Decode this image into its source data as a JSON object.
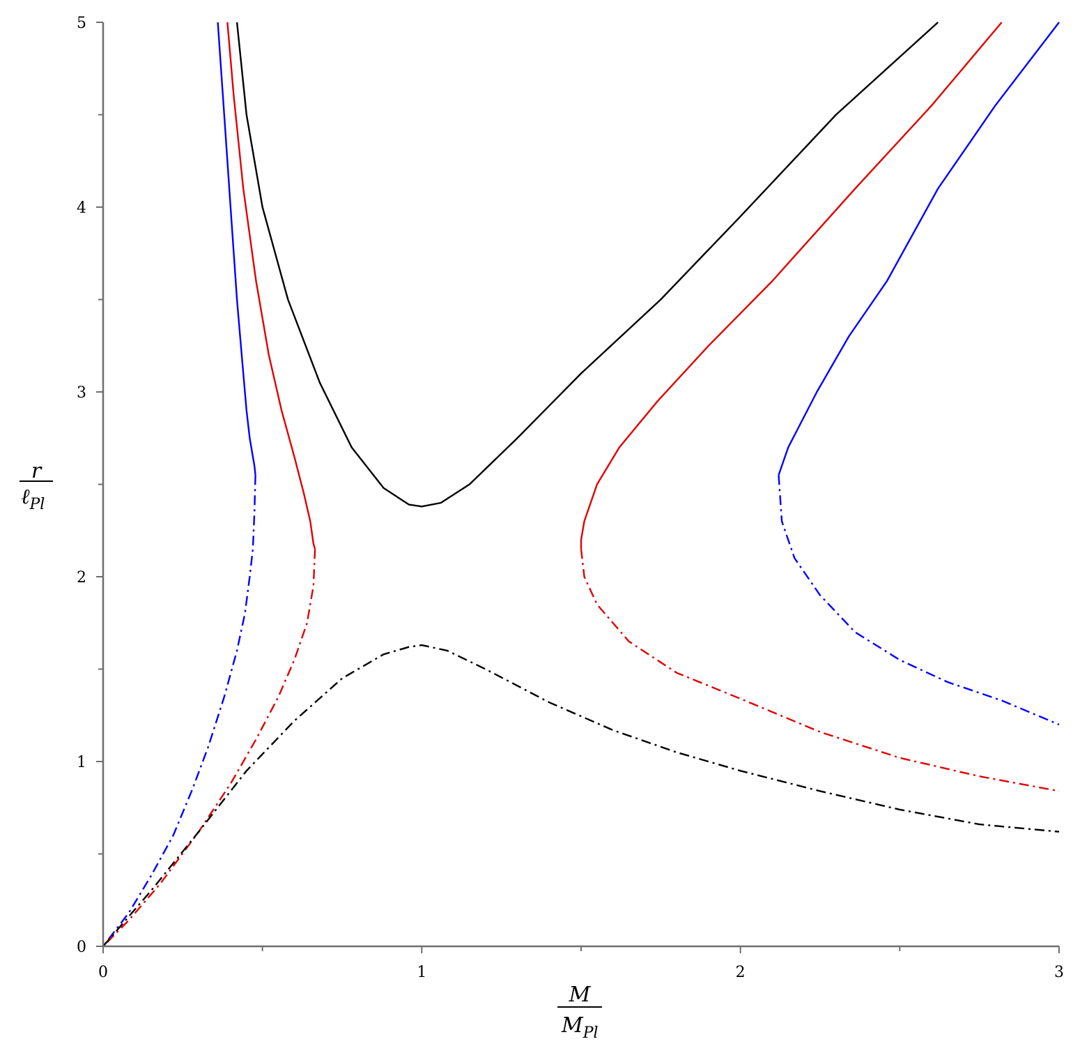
{
  "chart_data": {
    "type": "line",
    "title": "",
    "xlabel": {
      "numerator": "M",
      "denominator_base": "M",
      "denominator_sub": "Pl"
    },
    "ylabel": {
      "numerator": "r",
      "denominator_base": "ℓ",
      "denominator_sub": "Pl"
    },
    "xlim": [
      0,
      3
    ],
    "ylim": [
      0,
      5
    ],
    "xticks": [
      0,
      1,
      2,
      3
    ],
    "yticks": [
      0,
      1,
      2,
      3,
      4,
      5
    ],
    "x_minor_step": 0.5,
    "y_minor_step": 0.5,
    "grid": false,
    "legend": "none",
    "colors": {
      "blue": "#0000ff",
      "red": "#e00000",
      "black": "#000000",
      "axis": "#6e6e6e"
    },
    "series": [
      {
        "color": "blue",
        "style": "solid",
        "points": [
          [
            0.36,
            5.0
          ],
          [
            0.38,
            4.5
          ],
          [
            0.4,
            4.0
          ],
          [
            0.42,
            3.5
          ],
          [
            0.435,
            3.2
          ],
          [
            0.45,
            2.9
          ],
          [
            0.46,
            2.75
          ],
          [
            0.47,
            2.65
          ],
          [
            0.475,
            2.6
          ],
          [
            0.478,
            2.55
          ]
        ]
      },
      {
        "color": "blue",
        "style": "dashdot",
        "points": [
          [
            0.478,
            2.55
          ],
          [
            0.475,
            2.35
          ],
          [
            0.47,
            2.15
          ],
          [
            0.46,
            2.0
          ],
          [
            0.445,
            1.8
          ],
          [
            0.42,
            1.6
          ],
          [
            0.38,
            1.35
          ],
          [
            0.33,
            1.08
          ],
          [
            0.28,
            0.85
          ],
          [
            0.22,
            0.6
          ],
          [
            0.15,
            0.38
          ],
          [
            0.08,
            0.18
          ],
          [
            0.0,
            0.0
          ]
        ]
      },
      {
        "color": "blue",
        "style": "solid",
        "points": [
          [
            3.0,
            5.0
          ],
          [
            2.8,
            4.55
          ],
          [
            2.62,
            4.1
          ],
          [
            2.46,
            3.6
          ],
          [
            2.34,
            3.3
          ],
          [
            2.24,
            3.0
          ],
          [
            2.18,
            2.8
          ],
          [
            2.15,
            2.7
          ],
          [
            2.13,
            2.6
          ],
          [
            2.12,
            2.55
          ]
        ]
      },
      {
        "color": "blue",
        "style": "dashdot",
        "points": [
          [
            2.12,
            2.55
          ],
          [
            2.13,
            2.3
          ],
          [
            2.17,
            2.1
          ],
          [
            2.25,
            1.9
          ],
          [
            2.36,
            1.7
          ],
          [
            2.5,
            1.55
          ],
          [
            2.65,
            1.43
          ],
          [
            2.82,
            1.33
          ],
          [
            3.0,
            1.2
          ]
        ]
      },
      {
        "color": "red",
        "style": "solid",
        "points": [
          [
            0.39,
            5.0
          ],
          [
            0.41,
            4.6
          ],
          [
            0.44,
            4.1
          ],
          [
            0.48,
            3.6
          ],
          [
            0.52,
            3.2
          ],
          [
            0.56,
            2.9
          ],
          [
            0.6,
            2.65
          ],
          [
            0.63,
            2.45
          ],
          [
            0.65,
            2.3
          ],
          [
            0.66,
            2.18
          ],
          [
            0.665,
            2.15
          ]
        ]
      },
      {
        "color": "red",
        "style": "dashdot",
        "points": [
          [
            0.665,
            2.15
          ],
          [
            0.66,
            1.95
          ],
          [
            0.64,
            1.75
          ],
          [
            0.6,
            1.55
          ],
          [
            0.55,
            1.35
          ],
          [
            0.48,
            1.12
          ],
          [
            0.4,
            0.88
          ],
          [
            0.3,
            0.62
          ],
          [
            0.18,
            0.34
          ],
          [
            0.08,
            0.14
          ],
          [
            0.0,
            0.0
          ]
        ]
      },
      {
        "color": "red",
        "style": "solid",
        "points": [
          [
            2.82,
            5.0
          ],
          [
            2.6,
            4.55
          ],
          [
            2.36,
            4.1
          ],
          [
            2.1,
            3.6
          ],
          [
            1.9,
            3.25
          ],
          [
            1.74,
            2.95
          ],
          [
            1.62,
            2.7
          ],
          [
            1.55,
            2.5
          ],
          [
            1.51,
            2.3
          ],
          [
            1.5,
            2.2
          ],
          [
            1.5,
            2.15
          ]
        ]
      },
      {
        "color": "red",
        "style": "dashdot",
        "points": [
          [
            1.5,
            2.15
          ],
          [
            1.51,
            2.0
          ],
          [
            1.55,
            1.85
          ],
          [
            1.65,
            1.65
          ],
          [
            1.8,
            1.48
          ],
          [
            2.0,
            1.34
          ],
          [
            2.25,
            1.16
          ],
          [
            2.5,
            1.02
          ],
          [
            2.75,
            0.92
          ],
          [
            3.0,
            0.84
          ]
        ]
      },
      {
        "color": "black",
        "style": "solid",
        "points": [
          [
            0.42,
            5.0
          ],
          [
            0.45,
            4.5
          ],
          [
            0.5,
            4.0
          ],
          [
            0.58,
            3.5
          ],
          [
            0.68,
            3.05
          ],
          [
            0.78,
            2.7
          ],
          [
            0.88,
            2.48
          ],
          [
            0.96,
            2.39
          ],
          [
            1.0,
            2.38
          ],
          [
            1.06,
            2.4
          ],
          [
            1.15,
            2.5
          ],
          [
            1.3,
            2.75
          ],
          [
            1.5,
            3.1
          ],
          [
            1.75,
            3.5
          ],
          [
            2.0,
            3.95
          ],
          [
            2.3,
            4.5
          ],
          [
            2.62,
            5.0
          ]
        ]
      },
      {
        "color": "black",
        "style": "dashdot",
        "points": [
          [
            0.0,
            0.0
          ],
          [
            0.15,
            0.3
          ],
          [
            0.3,
            0.62
          ],
          [
            0.45,
            0.95
          ],
          [
            0.6,
            1.22
          ],
          [
            0.75,
            1.45
          ],
          [
            0.88,
            1.58
          ],
          [
            0.96,
            1.62
          ],
          [
            1.0,
            1.63
          ],
          [
            1.08,
            1.6
          ],
          [
            1.2,
            1.5
          ],
          [
            1.4,
            1.32
          ],
          [
            1.6,
            1.17
          ],
          [
            1.8,
            1.05
          ],
          [
            2.0,
            0.95
          ],
          [
            2.25,
            0.84
          ],
          [
            2.5,
            0.74
          ],
          [
            2.75,
            0.66
          ],
          [
            3.0,
            0.62
          ]
        ]
      }
    ]
  }
}
